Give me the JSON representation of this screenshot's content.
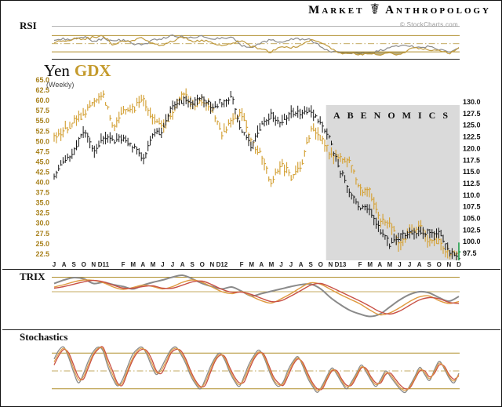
{
  "header": {
    "brand_first": "Market",
    "brand_second": "Anthropology",
    "logo_glyph": "☤",
    "credit": "© StockCharts.com"
  },
  "rsi_panel": {
    "label": "RSI"
  },
  "main_panel": {
    "title_symbol_1": "Yen",
    "title_symbol_2": "GDX",
    "subtitle": "(Weekly)",
    "annotation": "ABENOMICS"
  },
  "trix_panel": {
    "label": "TRIX"
  },
  "stoch_panel": {
    "label": "Stochastics"
  },
  "colors": {
    "gold_bars": "#D5A43C",
    "black_bars": "#161616",
    "gold_line": "#C09A3E",
    "gray_line": "#8a8a8a",
    "band_gold": "#B08F2D",
    "red_line": "#C85045",
    "orange_line": "#DF9A3F",
    "green_up": "#1E9E4A",
    "shade_gray": "#DADADA",
    "fill_olive": "rgba(144,120,40,0.6)",
    "fill_gray": "rgba(120,126,138,0.5)",
    "axis_gold_text": "#A8811C"
  },
  "chart_data": [
    {
      "type": "line",
      "panel": "rsi",
      "title": "RSI",
      "x_unit": "month",
      "x_range": "Jul 2010 - Dec 2013",
      "overbought": 70,
      "oversold": 30,
      "midline": 50,
      "series": [
        {
          "name": "Yen RSI",
          "color_key": "gray_line",
          "values": [
            58,
            62,
            60,
            68,
            55,
            63,
            57,
            59,
            50,
            47,
            58,
            62,
            69,
            67,
            64,
            69,
            61,
            64,
            66,
            45,
            39,
            54,
            59,
            54,
            60,
            62,
            59,
            44,
            30,
            27,
            25,
            28,
            26,
            33,
            41,
            45,
            43,
            42,
            44,
            36,
            31,
            40
          ]
        },
        {
          "name": "GDX RSI",
          "color_key": "gold_line",
          "values": [
            54,
            58,
            62,
            61,
            66,
            69,
            47,
            56,
            59,
            64,
            49,
            47,
            57,
            67,
            56,
            59,
            54,
            42,
            53,
            57,
            42,
            38,
            29,
            44,
            40,
            47,
            61,
            54,
            38,
            28,
            26,
            24,
            27,
            22,
            26,
            24,
            36,
            40,
            32,
            34,
            26,
            38
          ]
        }
      ]
    },
    {
      "type": "bar",
      "panel": "price",
      "title": "Yen GDX (Weekly)",
      "timeframe": "weekly",
      "x_range": "Jul 2010 - Dec 2013",
      "months_total": 42,
      "x_tick_labels": [
        "J",
        "A",
        "S",
        "O",
        "N",
        "D11",
        "F",
        "M",
        "A",
        "M",
        "J",
        "J",
        "A",
        "S",
        "O",
        "N",
        "D12",
        "F",
        "M",
        "A",
        "M",
        "J",
        "J",
        "A",
        "S",
        "O",
        "N",
        "D13",
        "F",
        "M",
        "A",
        "M",
        "J",
        "J",
        "A",
        "S",
        "O",
        "N",
        "D"
      ],
      "x_tick_month_index": [
        0,
        1,
        2,
        3,
        4,
        5,
        7,
        8,
        9,
        10,
        11,
        12,
        13,
        14,
        15,
        16,
        17,
        19,
        20,
        21,
        22,
        23,
        24,
        25,
        26,
        27,
        28,
        29,
        31,
        32,
        33,
        34,
        35,
        36,
        37,
        38,
        39,
        40,
        41
      ],
      "left_axis": {
        "symbol": "GDX",
        "min": 22.5,
        "max": 65.0,
        "step": 2.5,
        "ticks": [
          "65.0",
          "62.5",
          "60.0",
          "57.5",
          "55.0",
          "52.5",
          "50.0",
          "47.5",
          "45.0",
          "42.5",
          "40.0",
          "37.5",
          "35.0",
          "32.5",
          "30.0",
          "27.5",
          "25.0",
          "22.5"
        ]
      },
      "right_axis": {
        "symbol": "Yen",
        "min": 97.5,
        "max": 130.0,
        "step": 2.5,
        "ticks": [
          "130.0",
          "127.5",
          "125.0",
          "122.5",
          "120.0",
          "117.5",
          "115.0",
          "112.5",
          "110.0",
          "107.5",
          "105.0",
          "102.5",
          "100.0",
          "97.5"
        ]
      },
      "annotation": {
        "text": "ABENOMICS",
        "starts_at": "Nov 2012",
        "start_month_index": 28
      },
      "series": [
        {
          "name": "Yen",
          "axis": "right",
          "color_key": "black_bars",
          "monthly_close": [
            114.5,
            117.5,
            119.5,
            124.0,
            119.3,
            122.8,
            121.5,
            122.3,
            120.5,
            117.5,
            123.3,
            124.0,
            129.3,
            130.3,
            129.8,
            130.8,
            128.8,
            130.0,
            130.8,
            123.3,
            120.8,
            125.0,
            127.3,
            125.3,
            127.8,
            127.5,
            128.3,
            125.3,
            121.5,
            115.3,
            110.0,
            107.5,
            106.3,
            102.5,
            99.3,
            101.0,
            102.0,
            102.0,
            101.8,
            101.8,
            98.0,
            96.8
          ]
        },
        {
          "name": "GDX",
          "axis": "left",
          "color_key": "gold_bars",
          "last_bar": "green (up week)",
          "monthly_close": [
            50.5,
            52.5,
            55.0,
            56.5,
            60.0,
            61.3,
            53.5,
            57.5,
            58.0,
            60.5,
            55.0,
            54.0,
            57.0,
            62.0,
            59.0,
            59.5,
            58.0,
            51.5,
            55.5,
            57.0,
            49.5,
            47.0,
            39.5,
            44.5,
            41.5,
            44.0,
            53.0,
            51.0,
            46.5,
            46.0,
            44.5,
            38.5,
            37.5,
            31.0,
            30.0,
            24.5,
            27.5,
            29.5,
            25.5,
            25.5,
            22.0,
            22.8
          ]
        }
      ]
    },
    {
      "type": "line",
      "panel": "trix",
      "title": "TRIX",
      "x_unit": "month",
      "zero_line": 0,
      "series": [
        {
          "name": "Yen TRIX",
          "color_key": "gray_line",
          "values": [
            0.35,
            0.5,
            0.6,
            0.55,
            0.35,
            0.4,
            0.3,
            0.22,
            0.12,
            0.28,
            0.4,
            0.5,
            0.62,
            0.7,
            0.55,
            0.35,
            0.22,
            0.12,
            0.2,
            0.02,
            -0.18,
            -0.08,
            0.02,
            0.12,
            0.22,
            0.3,
            0.32,
            0.12,
            -0.25,
            -0.55,
            -0.8,
            -0.95,
            -1.05,
            -0.95,
            -0.65,
            -0.35,
            -0.12,
            0.0,
            -0.05,
            -0.25,
            -0.4,
            -0.2
          ]
        },
        {
          "name": "GDX TRIX",
          "color_key": "orange_line",
          "values": [
            0.2,
            0.3,
            0.42,
            0.5,
            0.48,
            0.38,
            0.2,
            0.1,
            0.18,
            0.28,
            0.22,
            0.12,
            0.22,
            0.4,
            0.5,
            0.4,
            0.2,
            0.0,
            -0.08,
            0.0,
            -0.2,
            -0.38,
            -0.48,
            -0.3,
            -0.08,
            0.18,
            0.38,
            0.32,
            0.1,
            -0.12,
            -0.32,
            -0.52,
            -0.78,
            -0.98,
            -0.9,
            -0.68,
            -0.42,
            -0.22,
            -0.18,
            -0.38,
            -0.5,
            -0.42
          ]
        },
        {
          "name": "signal",
          "color_key": "red_line",
          "values": [
            0.15,
            0.22,
            0.32,
            0.42,
            0.48,
            0.42,
            0.28,
            0.15,
            0.15,
            0.22,
            0.25,
            0.15,
            0.15,
            0.28,
            0.42,
            0.45,
            0.3,
            0.1,
            -0.02,
            -0.02,
            -0.12,
            -0.28,
            -0.42,
            -0.38,
            -0.18,
            0.05,
            0.28,
            0.35,
            0.2,
            0.0,
            -0.2,
            -0.4,
            -0.62,
            -0.85,
            -0.95,
            -0.82,
            -0.58,
            -0.35,
            -0.25,
            -0.3,
            -0.45,
            -0.5
          ]
        }
      ]
    },
    {
      "type": "line",
      "panel": "stoch",
      "title": "Stochastics",
      "x_unit": "half-month",
      "overbought": 80,
      "oversold": 20,
      "midline": 50,
      "series": [
        {
          "name": "Yen stochastic",
          "color_key": "gray_line",
          "values": [
            70,
            85,
            90,
            72,
            48,
            30,
            45,
            66,
            82,
            90,
            84,
            58,
            38,
            25,
            35,
            56,
            76,
            86,
            90,
            78,
            58,
            44,
            56,
            72,
            86,
            90,
            78,
            62,
            42,
            28,
            20,
            36,
            56,
            72,
            80,
            68,
            48,
            33,
            24,
            42,
            62,
            76,
            85,
            73,
            52,
            33,
            24,
            32,
            52,
            66,
            74,
            58,
            38,
            24,
            14,
            26,
            42,
            55,
            44,
            30,
            20,
            32,
            46,
            60,
            48,
            34,
            24,
            36,
            50,
            40,
            29,
            19,
            14,
            26,
            41,
            56,
            44,
            34,
            52,
            66,
            54,
            38,
            30,
            46
          ]
        },
        {
          "name": "GDX stochastic",
          "color_key": "red_line",
          "values": [
            60,
            76,
            86,
            80,
            60,
            40,
            36,
            55,
            75,
            86,
            90,
            70,
            50,
            30,
            26,
            46,
            66,
            80,
            86,
            84,
            70,
            50,
            46,
            62,
            80,
            86,
            84,
            70,
            50,
            34,
            24,
            26,
            46,
            66,
            76,
            74,
            56,
            40,
            30,
            32,
            52,
            70,
            80,
            78,
            60,
            40,
            30,
            26,
            42,
            60,
            70,
            64,
            46,
            30,
            20,
            20,
            36,
            50,
            50,
            36,
            26,
            26,
            40,
            55,
            54,
            40,
            30,
            30,
            44,
            46,
            36,
            26,
            20,
            22,
            36,
            50,
            50,
            40,
            46,
            60,
            58,
            44,
            36,
            42
          ]
        },
        {
          "name": "signal",
          "color_key": "orange_line",
          "values": [
            65,
            80,
            88,
            76,
            54,
            35,
            40,
            60,
            78,
            88,
            87,
            64,
            44,
            27,
            30,
            50,
            70,
            83,
            88,
            81,
            64,
            47,
            51,
            67,
            83,
            88,
            81,
            66,
            46,
            31,
            22,
            31,
            51,
            69,
            78,
            71,
            52,
            36,
            27,
            37,
            57,
            73,
            82,
            75,
            56,
            36,
            27,
            29,
            47,
            63,
            72,
            61,
            42,
            27,
            17,
            23,
            39,
            52,
            47,
            33,
            23,
            29,
            43,
            57,
            51,
            37,
            27,
            33,
            47,
            43,
            32,
            22,
            17,
            24,
            38,
            53,
            47,
            37,
            49,
            63,
            56,
            41,
            33,
            44
          ]
        }
      ]
    }
  ]
}
